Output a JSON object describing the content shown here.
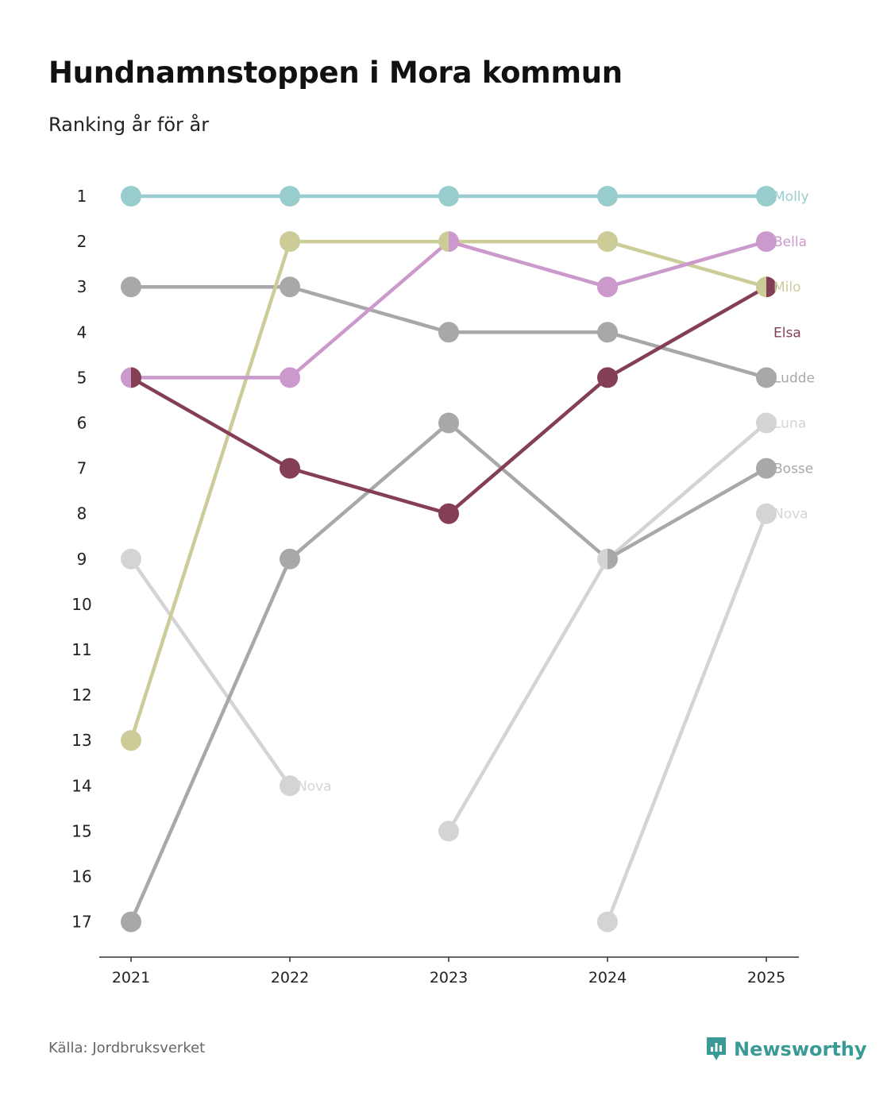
{
  "header": {
    "title": "Hundnamnstoppen i Mora kommun",
    "subtitle": "Ranking år för år"
  },
  "footer": {
    "source": "Källa: Jordbruksverket",
    "brand": "Newsworthy",
    "brand_color": "#3a9b96"
  },
  "chart_data": {
    "type": "line",
    "title": "Hundnamnstoppen i Mora kommun",
    "subtitle": "Ranking år för år",
    "xlabel": "",
    "ylabel": "",
    "x": [
      "2021",
      "2022",
      "2023",
      "2024",
      "2025"
    ],
    "y_ticks": [
      "1",
      "2",
      "3",
      "4",
      "5",
      "6",
      "7",
      "8",
      "9",
      "10",
      "11",
      "12",
      "13",
      "14",
      "15",
      "16",
      "17"
    ],
    "ylim": [
      1,
      17
    ],
    "y_inverted": true,
    "series": [
      {
        "name": "Nova",
        "label": "Nova",
        "color": "#d4d4d4",
        "values": [
          9,
          14,
          null,
          null,
          null
        ],
        "label_at": 1
      },
      {
        "name": "Luna",
        "label": "Luna",
        "color": "#d4d4d4",
        "values": [
          null,
          null,
          15,
          9,
          6
        ],
        "label_at": 4
      },
      {
        "name": "Nova",
        "label": "Nova",
        "color": "#d4d4d4",
        "values": [
          null,
          null,
          null,
          17,
          8
        ],
        "label_at": 4
      },
      {
        "name": "Bosse",
        "label": "Bosse",
        "color": "#a8a8a8",
        "values": [
          17,
          9,
          6,
          9,
          7
        ],
        "label_at": 4
      },
      {
        "name": "Ludde",
        "label": "Ludde",
        "color": "#a8a8a8",
        "values": [
          3,
          3,
          4,
          4,
          5
        ],
        "label_at": 4
      },
      {
        "name": "Milo",
        "label": "Milo",
        "color": "#cccc99",
        "values": [
          13,
          2,
          2,
          2,
          3
        ],
        "label_at": 4
      },
      {
        "name": "Bella",
        "label": "Bella",
        "color": "#cc99cc",
        "values": [
          5,
          5,
          2,
          3,
          2
        ],
        "label_at": 4
      },
      {
        "name": "Elsa",
        "label": "Elsa",
        "color": "#843f56",
        "values": [
          5,
          7,
          8,
          5,
          3
        ],
        "label_at": 4,
        "label_rank": 4
      },
      {
        "name": "Molly",
        "label": "Molly",
        "color": "#99cccc",
        "values": [
          1,
          1,
          1,
          1,
          1
        ],
        "label_at": 4
      }
    ]
  }
}
